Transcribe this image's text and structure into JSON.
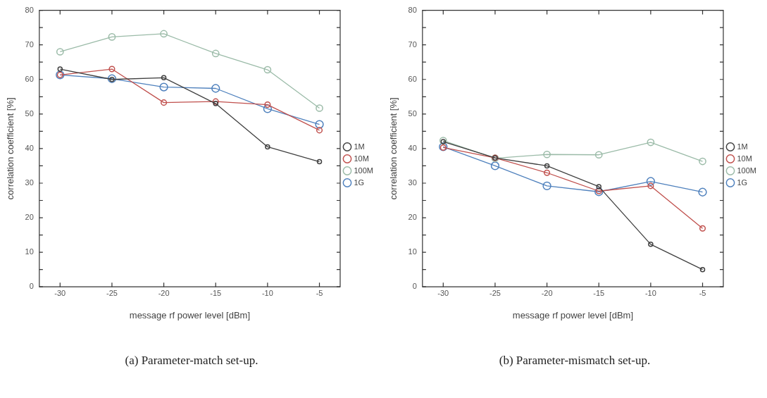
{
  "chart_data": [
    {
      "type": "line",
      "xlabel": "message rf power level [dBm]",
      "ylabel": "correlation coefficient [%]",
      "x": [
        -30,
        -25,
        -20,
        -15,
        -10,
        -5
      ],
      "xlim": [
        -32,
        -3
      ],
      "xticks": [
        -30,
        -25,
        -20,
        -15,
        -10,
        -5
      ],
      "ylim": [
        0,
        80
      ],
      "yticks": [
        0,
        {
          "value": 5,
          "label": null
        },
        10,
        {
          "value": 15,
          "label": null
        },
        20,
        {
          "value": 25,
          "label": null
        },
        30,
        {
          "value": 35,
          "label": null
        },
        40,
        {
          "value": 45,
          "label": null
        },
        50,
        {
          "value": 55,
          "label": null
        },
        60,
        {
          "value": 65,
          "label": null
        },
        70,
        {
          "value": 75,
          "label": null
        },
        80
      ],
      "legend": "right",
      "marker": "circle",
      "annotations": [
        "(a) Parameter-match set-up."
      ],
      "series": [
        {
          "name": "1M",
          "color": "#404040",
          "values": [
            63,
            60,
            60.5,
            53,
            40.5,
            36.2
          ]
        },
        {
          "name": "10M",
          "color": "#c0504d",
          "values": [
            61.3,
            63,
            53.3,
            53.6,
            52.7,
            45.3
          ]
        },
        {
          "name": "100M",
          "color": "#9bbba8",
          "values": [
            68,
            72.3,
            73.2,
            67.5,
            62.8,
            51.7
          ]
        },
        {
          "name": "1G",
          "color": "#4f81bd",
          "values": [
            61.3,
            60.2,
            57.8,
            57.4,
            51.5,
            47
          ]
        }
      ]
    },
    {
      "type": "line",
      "xlabel": "message rf power level [dBm]",
      "ylabel": "correlation coefficient [%]",
      "x": [
        -30,
        -25,
        -20,
        -15,
        -10,
        -5
      ],
      "xlim": [
        -32,
        -3
      ],
      "xticks": [
        -30,
        -25,
        -20,
        -15,
        -10,
        -5
      ],
      "ylim": [
        0,
        80
      ],
      "yticks": [
        0,
        {
          "value": 5,
          "label": null
        },
        10,
        {
          "value": 15,
          "label": null
        },
        20,
        {
          "value": 25,
          "label": null
        },
        30,
        {
          "value": 35,
          "label": null
        },
        40,
        {
          "value": 45,
          "label": null
        },
        50,
        {
          "value": 55,
          "label": null
        },
        60,
        {
          "value": 65,
          "label": null
        },
        70,
        {
          "value": 75,
          "label": null
        },
        80
      ],
      "legend": "right",
      "marker": "circle",
      "annotations": [
        "(b) Parameter-mismatch set-up."
      ],
      "series": [
        {
          "name": "1M",
          "color": "#404040",
          "values": [
            42,
            37.3,
            35,
            29,
            12.3,
            5
          ]
        },
        {
          "name": "10M",
          "color": "#c0504d",
          "values": [
            40.3,
            37.3,
            33,
            27.7,
            29.2,
            16.9
          ]
        },
        {
          "name": "100M",
          "color": "#9bbba8",
          "values": [
            42.3,
            37.2,
            38.3,
            38.2,
            41.8,
            36.3
          ]
        },
        {
          "name": "1G",
          "color": "#4f81bd",
          "values": [
            40.5,
            35,
            29.2,
            27.5,
            30.5,
            27.4
          ]
        }
      ]
    }
  ]
}
